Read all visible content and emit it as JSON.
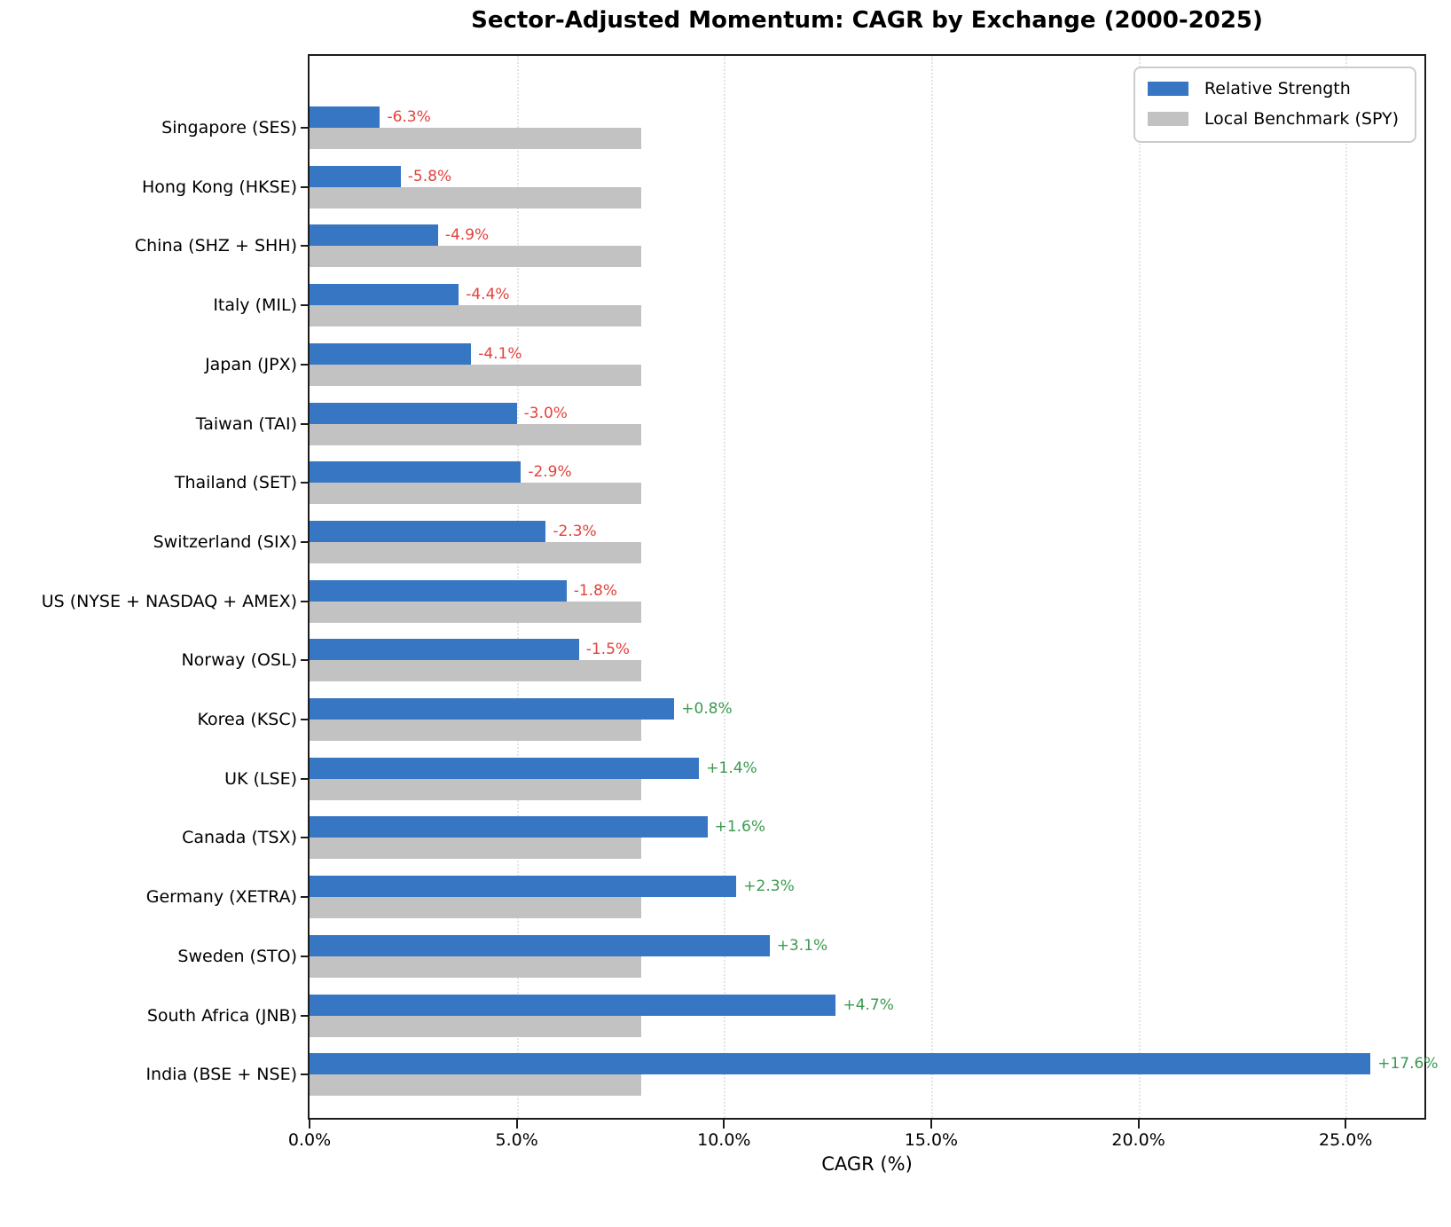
{
  "chart_data": {
    "type": "bar",
    "orientation": "horizontal",
    "title": "Sector-Adjusted Momentum: CAGR by Exchange (2000-2025)",
    "xlabel": "CAGR (%)",
    "xlim": [
      0,
      26.9
    ],
    "x_tick_values": [
      0,
      5,
      10,
      15,
      20,
      25
    ],
    "x_tick_labels": [
      "0.0%",
      "5.0%",
      "10.0%",
      "15.0%",
      "20.0%",
      "25.0%"
    ],
    "grid": "vertical dotted gridlines at x ticks",
    "legend_position": "upper-right",
    "categories": [
      "Singapore (SES)",
      "Hong Kong (HKSE)",
      "China (SHZ + SHH)",
      "Italy (MIL)",
      "Japan (JPX)",
      "Taiwan (TAI)",
      "Thailand (SET)",
      "Switzerland (SIX)",
      "US (NYSE + NASDAQ + AMEX)",
      "Norway (OSL)",
      "Korea (KSC)",
      "UK (LSE)",
      "Canada (TSX)",
      "Germany (XETRA)",
      "Sweden (STO)",
      "South Africa (JNB)",
      "India (BSE + NSE)"
    ],
    "series": [
      {
        "name": "Relative Strength",
        "color": "#3776c3",
        "values": [
          1.7,
          2.2,
          3.1,
          3.6,
          3.9,
          5.0,
          5.1,
          5.7,
          6.2,
          6.5,
          8.8,
          9.4,
          9.6,
          10.3,
          11.1,
          12.7,
          25.6
        ]
      },
      {
        "name": "Local Benchmark (SPY)",
        "color": "#c2c2c2",
        "values": [
          8.0,
          8.0,
          8.0,
          8.0,
          8.0,
          8.0,
          8.0,
          8.0,
          8.0,
          8.0,
          8.0,
          8.0,
          8.0,
          8.0,
          8.0,
          8.0,
          8.0
        ]
      }
    ],
    "annotations": {
      "labels": [
        "-6.3%",
        "-5.8%",
        "-4.9%",
        "-4.4%",
        "-4.1%",
        "-3.0%",
        "-2.9%",
        "-2.3%",
        "-1.8%",
        "-1.5%",
        "+0.8%",
        "+1.4%",
        "+1.6%",
        "+2.3%",
        "+3.1%",
        "+4.7%",
        "+17.6%"
      ],
      "negative_color": "#e2423c",
      "positive_color": "#3c9950"
    }
  }
}
